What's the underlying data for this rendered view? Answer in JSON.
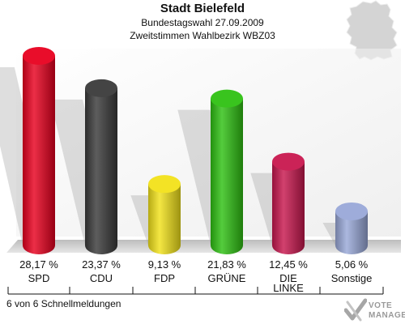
{
  "header": {
    "title": "Stadt Bielefeld",
    "subtitle": "Bundestagswahl 27.09.2009",
    "district": "Zweitstimmen Wahlbezirk WBZ03"
  },
  "footer": {
    "status": "6 von 6 Schnellmeldungen",
    "logo_line1": "VOTE",
    "logo_line2": "MANAGER"
  },
  "chart_data": {
    "type": "bar",
    "title": "Stadt Bielefeld",
    "categories": [
      "SPD",
      "CDU",
      "FDP",
      "GRÜNE",
      "DIE LINKE",
      "Sonstige"
    ],
    "category_lines": [
      [
        "SPD"
      ],
      [
        "CDU"
      ],
      [
        "FDP"
      ],
      [
        "GRÜNE"
      ],
      [
        "DIE",
        "LINKE"
      ],
      [
        "Sonstige"
      ]
    ],
    "values": [
      28.17,
      23.37,
      9.13,
      21.83,
      12.45,
      5.06
    ],
    "value_labels": [
      "28,17 %",
      "23,37 %",
      "9,13 %",
      "21,83 %",
      "12,45 %",
      "5,06 %"
    ],
    "colors": [
      "#e8001f",
      "#3a3a3a",
      "#f2e21a",
      "#2fc112",
      "#c8174e",
      "#99a8d8"
    ],
    "ylim": [
      0,
      28.17
    ],
    "grid": false,
    "legend": "none"
  }
}
